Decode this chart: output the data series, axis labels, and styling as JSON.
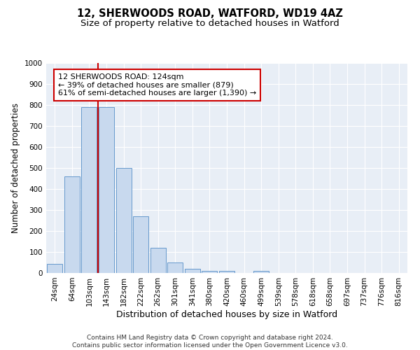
{
  "title_line1": "12, SHERWOODS ROAD, WATFORD, WD19 4AZ",
  "title_line2": "Size of property relative to detached houses in Watford",
  "xlabel": "Distribution of detached houses by size in Watford",
  "ylabel": "Number of detached properties",
  "bar_labels": [
    "24sqm",
    "64sqm",
    "103sqm",
    "143sqm",
    "182sqm",
    "222sqm",
    "262sqm",
    "301sqm",
    "341sqm",
    "380sqm",
    "420sqm",
    "460sqm",
    "499sqm",
    "539sqm",
    "578sqm",
    "618sqm",
    "658sqm",
    "697sqm",
    "737sqm",
    "776sqm",
    "816sqm"
  ],
  "bar_values": [
    45,
    460,
    790,
    790,
    500,
    270,
    120,
    50,
    20,
    10,
    10,
    0,
    10,
    0,
    0,
    0,
    0,
    0,
    0,
    0,
    0
  ],
  "bar_color": "#c8d9ee",
  "bar_edgecolor": "#6699cc",
  "vline_color": "#cc0000",
  "annotation_text": "12 SHERWOODS ROAD: 124sqm\n← 39% of detached houses are smaller (879)\n61% of semi-detached houses are larger (1,390) →",
  "annotation_box_color": "#ffffff",
  "annotation_box_edgecolor": "#cc0000",
  "ylim": [
    0,
    1000
  ],
  "yticks": [
    0,
    100,
    200,
    300,
    400,
    500,
    600,
    700,
    800,
    900,
    1000
  ],
  "background_color": "#e8eef6",
  "footer_line1": "Contains HM Land Registry data © Crown copyright and database right 2024.",
  "footer_line2": "Contains public sector information licensed under the Open Government Licence v3.0.",
  "title_fontsize": 10.5,
  "subtitle_fontsize": 9.5,
  "axis_label_fontsize": 8.5,
  "tick_fontsize": 7.5,
  "annotation_fontsize": 8,
  "footer_fontsize": 6.5
}
